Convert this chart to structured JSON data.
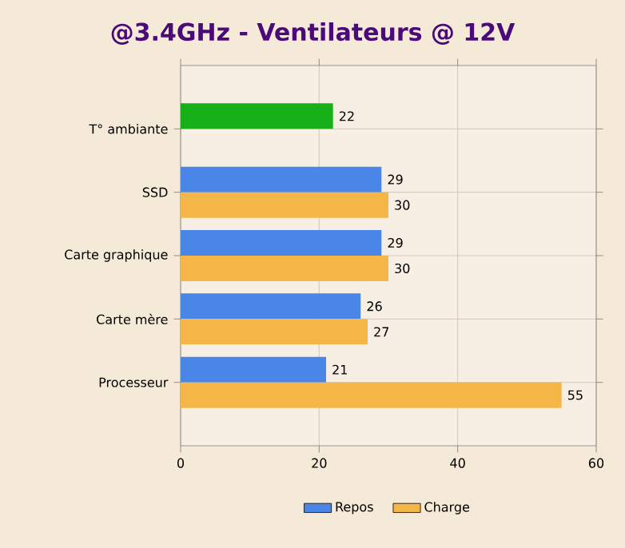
{
  "chart_data": {
    "type": "bar",
    "orientation": "horizontal",
    "title": "@3.4GHz - Ventilateurs @ 12V",
    "categories": [
      "T° ambiante",
      "SSD",
      "Carte graphique",
      "Carte mère",
      "Processeur"
    ],
    "series": [
      {
        "name": "Repos",
        "color": "#4a86e8",
        "colors": [
          "#18b018",
          "#4a86e8",
          "#4a86e8",
          "#4a86e8",
          "#4a86e8"
        ],
        "values": [
          22,
          29,
          29,
          26,
          21
        ]
      },
      {
        "name": "Charge",
        "color": "#f5b648",
        "values": [
          null,
          30,
          30,
          27,
          55
        ]
      }
    ],
    "xlim": [
      0,
      60
    ],
    "xticks": [
      0,
      20,
      40,
      60
    ],
    "grid": true,
    "legend": "bottom",
    "data_labels": true
  }
}
